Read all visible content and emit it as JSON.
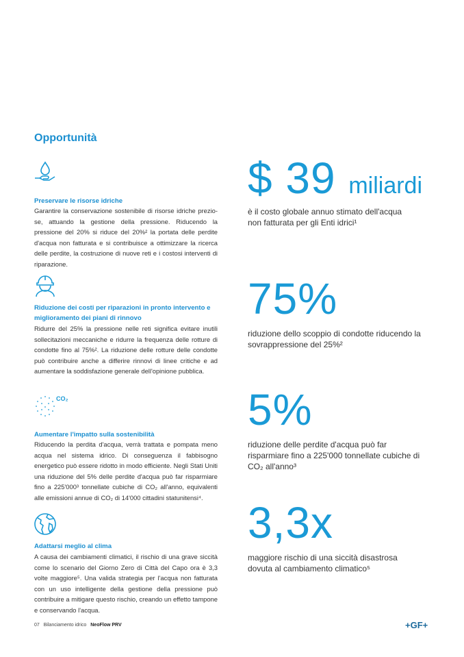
{
  "title": "Opportunità",
  "sections": [
    {
      "icon": "water-drop-hand-icon",
      "heading": "Preservare le risorse idriche",
      "body": "Garantire la conservazione sostenibile di risorse idriche prezio-se, attuando la gestione della pressione. Riducendo la pressione del 20% si riduce del 20%² la portata delle perdite d'acqua non fatturata e si contribuisce a ottimizzare la ricerca delle perdite, la costruzione di nuove reti e i costosi interventi di riparazione."
    },
    {
      "icon": "worker-helmet-icon",
      "heading": "Riduzione dei costi per riparazioni in pronto intervento e miglioramento dei piani di rinnovo",
      "body": "Ridurre del 25% la pressione nelle reti significa evitare inutili sollecitazioni meccaniche e ridurre la frequenza delle rotture di condotte fino al 75%². La riduzione delle rotture delle condotte può contribuire anche a differire rinnovi di linee critiche e ad aumentare la soddisfazione generale dell'opinione pubblica."
    },
    {
      "icon": "co2-dots-icon",
      "icon_label": "CO₂",
      "heading": "Aumentare l'impatto sulla sostenibilità",
      "body": "Riducendo la perdita d'acqua, verrà trattata e pompata meno acqua nel sistema idrico. Di conseguenza il fabbisogno energetico può essere ridotto in modo efficiente. Negli Stati Uniti una riduzione del 5% delle perdite d'acqua può far risparmiare fino a 225'000³ tonnellate cubiche di CO₂ all'anno, equivalenti alle emissioni annue di CO₂ di 14'000 cittadini statunitensi⁴."
    },
    {
      "icon": "globe-icon",
      "heading": "Adattarsi meglio al clima",
      "body": "A causa dei cambiamenti climatici, il rischio di una grave siccità come lo scenario del Giorno Zero di Città del Capo ora è 3,3 volte maggiore⁵. Una valida strategia per l'acqua non fatturata con un uso intelligente della gestione della pressione può contribuire a mitigare questo rischio, creando un effetto tampone e conservando l'acqua."
    }
  ],
  "stats": [
    {
      "value": "$ 39",
      "unit": "miliardi",
      "desc": "è il costo globale annuo stimato dell'acqua non fatturata per gli Enti idrici¹"
    },
    {
      "value": "75%",
      "unit": "",
      "desc": "riduzione dello scoppio di condotte riducendo la sovrappressione del 25%²"
    },
    {
      "value": "5%",
      "unit": "",
      "desc": "riduzione delle perdite d'acqua può far risparmiare fino a 225'000 tonnellate cubiche di CO₂ all'anno³"
    },
    {
      "value": "3,3x",
      "unit": "",
      "desc": "maggiore rischio di una siccità disastrosa dovuta al cambiamento climatico⁵"
    }
  ],
  "footer": {
    "page": "07",
    "section": "Bilanciamento idrico",
    "product": "NeoFlow PRV",
    "logo": "+GF+"
  },
  "colors": {
    "accent": "#1a9ad6",
    "heading": "#1b8fd0",
    "logo": "#1c6a9c"
  }
}
